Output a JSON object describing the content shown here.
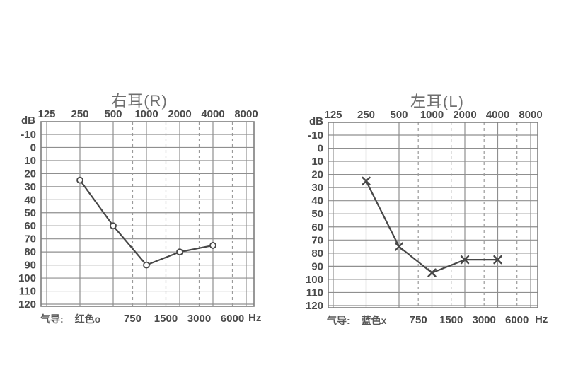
{
  "colors": {
    "background": "#ffffff",
    "grid": "#8f8f8f",
    "grid_dashed": "#9a9a9a",
    "plot_border": "#7f7f7f",
    "axis_text": "#4a4a4a",
    "title_text": "#6f6f6f",
    "series_line": "#474747"
  },
  "chart_data": [
    {
      "type": "line",
      "title": "右耳(R)",
      "y_axis_unit": "dB",
      "x_axis_unit": "Hz",
      "x_scale": "log2",
      "grid": true,
      "ylim": [
        -10,
        120
      ],
      "xlim_hz": [
        125,
        8000
      ],
      "top_axis_ticks_hz": [
        125,
        250,
        500,
        1000,
        2000,
        4000,
        8000
      ],
      "bottom_axis_ticks_hz": [
        750,
        1500,
        3000,
        6000
      ],
      "y_ticks_db": [
        -10,
        0,
        10,
        20,
        30,
        40,
        50,
        60,
        70,
        80,
        90,
        100,
        110,
        120
      ],
      "legend_position": "bottom-left",
      "legend_label": "气导:",
      "legend_value": "红色o",
      "marker": "circle",
      "series": [
        {
          "name": "气导 红色o (air conduction, right ear)",
          "x_hz": [
            250,
            500,
            1000,
            2000,
            4000
          ],
          "y_db": [
            25,
            60,
            90,
            80,
            75
          ]
        }
      ]
    },
    {
      "type": "line",
      "title": "左耳(L)",
      "y_axis_unit": "dB",
      "x_axis_unit": "Hz",
      "x_scale": "log2",
      "grid": true,
      "ylim": [
        -10,
        120
      ],
      "xlim_hz": [
        125,
        8000
      ],
      "top_axis_ticks_hz": [
        125,
        250,
        500,
        1000,
        2000,
        4000,
        8000
      ],
      "bottom_axis_ticks_hz": [
        750,
        1500,
        3000,
        6000
      ],
      "y_ticks_db": [
        -10,
        0,
        10,
        20,
        30,
        40,
        50,
        60,
        70,
        80,
        90,
        100,
        110,
        120
      ],
      "legend_position": "bottom-left",
      "legend_label": "气导:",
      "legend_value": "蓝色x",
      "marker": "x",
      "series": [
        {
          "name": "气导 蓝色x (air conduction, left ear)",
          "x_hz": [
            250,
            500,
            1000,
            2000,
            4000
          ],
          "y_db": [
            25,
            75,
            95,
            85,
            85
          ]
        }
      ]
    }
  ]
}
